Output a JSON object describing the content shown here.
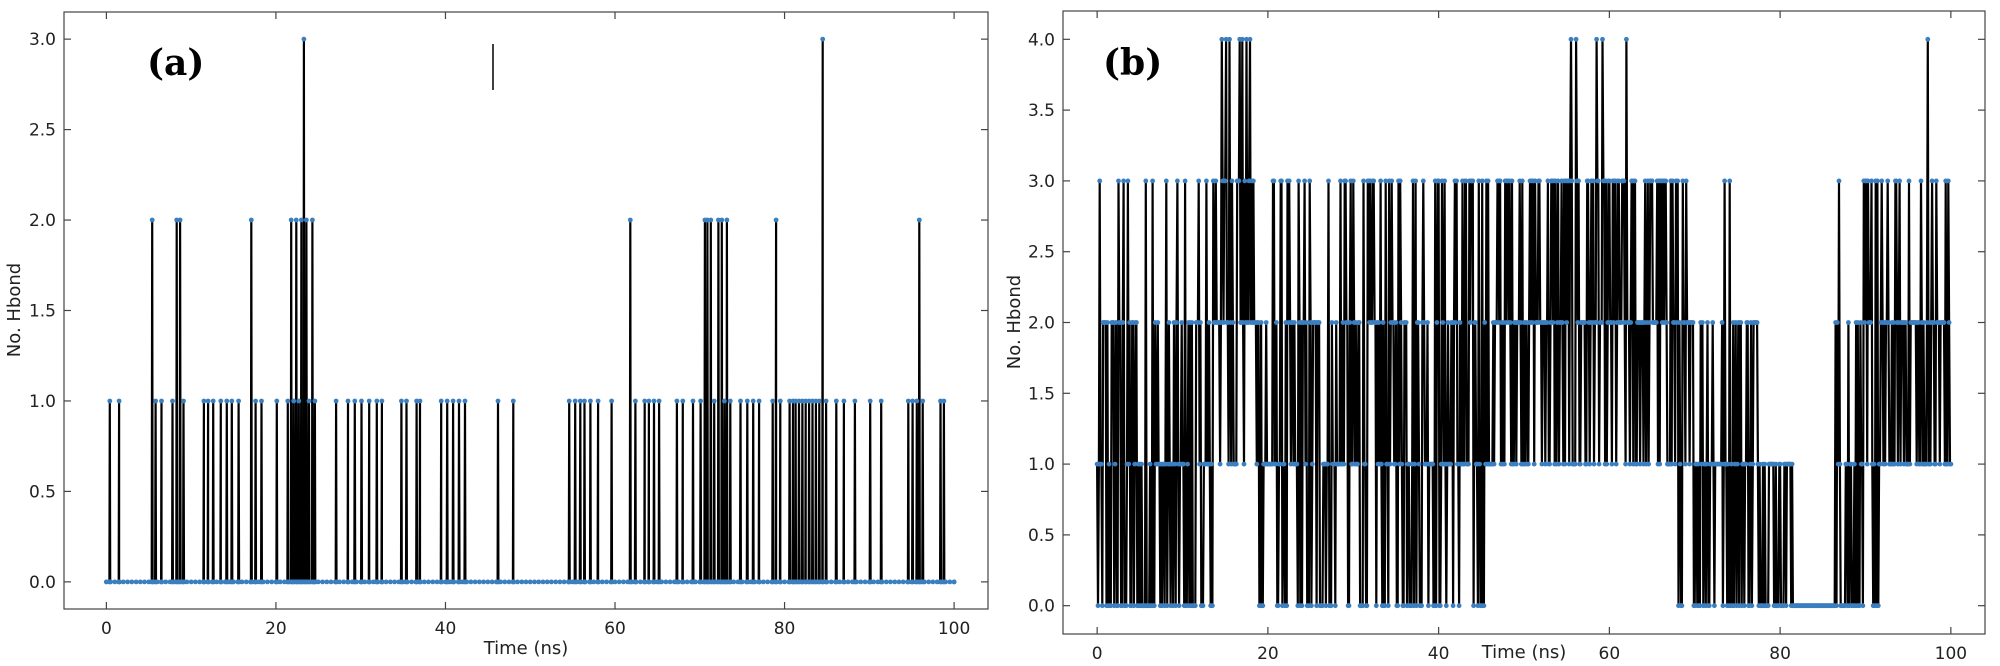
{
  "chart_data": [
    {
      "type": "line",
      "panel_label": "(a)",
      "xlabel": "Time (ns)",
      "ylabel": "No. Hbond",
      "xlim": [
        -5,
        104
      ],
      "ylim": [
        -0.15,
        3.15
      ],
      "xticks": [
        "0",
        "20",
        "40",
        "60",
        "80",
        "100"
      ],
      "yticks": [
        "0.0",
        "0.5",
        "1.0",
        "1.5",
        "2.0",
        "2.5",
        "3.0"
      ],
      "grid": false,
      "line_color": "#000000",
      "marker_color": "#3b7fc0",
      "events": [
        [
          0.4,
          1
        ],
        [
          1.5,
          1
        ],
        [
          5.4,
          2
        ],
        [
          5.8,
          1
        ],
        [
          6.5,
          1
        ],
        [
          7.8,
          1
        ],
        [
          8.3,
          2
        ],
        [
          8.7,
          2
        ],
        [
          9.1,
          1
        ],
        [
          11.5,
          1
        ],
        [
          12.0,
          1
        ],
        [
          12.6,
          1
        ],
        [
          13.5,
          1
        ],
        [
          14.2,
          1
        ],
        [
          14.8,
          1
        ],
        [
          15.6,
          1
        ],
        [
          17.1,
          2
        ],
        [
          17.6,
          1
        ],
        [
          18.3,
          1
        ],
        [
          20.1,
          1
        ],
        [
          21.4,
          1
        ],
        [
          21.8,
          2
        ],
        [
          22.1,
          1
        ],
        [
          22.4,
          2
        ],
        [
          22.7,
          1
        ],
        [
          23.0,
          2
        ],
        [
          23.3,
          3
        ],
        [
          23.6,
          2
        ],
        [
          23.9,
          1
        ],
        [
          24.3,
          2
        ],
        [
          24.6,
          1
        ],
        [
          27.1,
          1
        ],
        [
          28.5,
          1
        ],
        [
          29.3,
          1
        ],
        [
          30.1,
          1
        ],
        [
          31.0,
          1
        ],
        [
          31.9,
          1
        ],
        [
          32.5,
          1
        ],
        [
          34.8,
          1
        ],
        [
          35.4,
          1
        ],
        [
          36.6,
          1
        ],
        [
          37.0,
          1
        ],
        [
          39.5,
          1
        ],
        [
          40.2,
          1
        ],
        [
          40.9,
          1
        ],
        [
          41.6,
          1
        ],
        [
          42.3,
          1
        ],
        [
          46.2,
          1
        ],
        [
          48.0,
          1
        ],
        [
          54.6,
          1
        ],
        [
          55.3,
          1
        ],
        [
          55.9,
          1
        ],
        [
          56.4,
          1
        ],
        [
          57.1,
          1
        ],
        [
          58.0,
          1
        ],
        [
          59.6,
          1
        ],
        [
          61.8,
          2
        ],
        [
          62.4,
          1
        ],
        [
          63.5,
          1
        ],
        [
          64.0,
          1
        ],
        [
          64.6,
          1
        ],
        [
          65.2,
          1
        ],
        [
          67.3,
          1
        ],
        [
          68.0,
          1
        ],
        [
          69.2,
          1
        ],
        [
          70.1,
          1
        ],
        [
          70.6,
          2
        ],
        [
          70.9,
          2
        ],
        [
          71.3,
          2
        ],
        [
          71.7,
          1
        ],
        [
          72.2,
          2
        ],
        [
          72.6,
          2
        ],
        [
          72.9,
          1
        ],
        [
          73.2,
          2
        ],
        [
          73.6,
          1
        ],
        [
          74.8,
          1
        ],
        [
          75.6,
          1
        ],
        [
          76.3,
          1
        ],
        [
          77.0,
          1
        ],
        [
          78.6,
          1
        ],
        [
          79.0,
          2
        ],
        [
          79.5,
          1
        ],
        [
          80.6,
          1
        ],
        [
          81.0,
          1
        ],
        [
          81.3,
          1
        ],
        [
          81.7,
          1
        ],
        [
          82.1,
          1
        ],
        [
          82.5,
          1
        ],
        [
          82.9,
          1
        ],
        [
          83.3,
          1
        ],
        [
          83.7,
          1
        ],
        [
          84.1,
          1
        ],
        [
          84.5,
          3
        ],
        [
          84.9,
          1
        ],
        [
          86.1,
          1
        ],
        [
          87.0,
          1
        ],
        [
          88.3,
          1
        ],
        [
          90.1,
          1
        ],
        [
          91.4,
          1
        ],
        [
          94.6,
          1
        ],
        [
          95.1,
          1
        ],
        [
          95.6,
          1
        ],
        [
          95.9,
          2
        ],
        [
          96.3,
          1
        ],
        [
          98.4,
          1
        ],
        [
          98.8,
          1
        ]
      ]
    },
    {
      "type": "line",
      "panel_label": "(b)",
      "xlabel": "Time (ns)",
      "ylabel": "No. Hbond",
      "xlim": [
        -4,
        104
      ],
      "ylim": [
        -0.2,
        4.2
      ],
      "xticks": [
        "0",
        "20",
        "40",
        "60",
        "80",
        "100"
      ],
      "yticks": [
        "0.0",
        "0.5",
        "1.0",
        "1.5",
        "2.0",
        "2.5",
        "3.0",
        "3.5",
        "4.0"
      ],
      "grid": false,
      "line_color": "#000000",
      "marker_color": "#3b7fc0",
      "segments": [
        {
          "start": 0,
          "end": 13.5,
          "values": [
            0,
            1,
            2,
            3
          ],
          "weights": [
            0.45,
            0.25,
            0.22,
            0.08
          ]
        },
        {
          "start": 13.5,
          "end": 18.5,
          "values": [
            1,
            2,
            3,
            4
          ],
          "weights": [
            0.2,
            0.35,
            0.35,
            0.1
          ]
        },
        {
          "start": 18.5,
          "end": 31,
          "values": [
            0,
            1,
            2,
            3
          ],
          "weights": [
            0.3,
            0.35,
            0.25,
            0.1
          ]
        },
        {
          "start": 31,
          "end": 47,
          "values": [
            0,
            1,
            2,
            3
          ],
          "weights": [
            0.2,
            0.3,
            0.3,
            0.2
          ]
        },
        {
          "start": 47,
          "end": 68,
          "values": [
            1,
            2,
            3,
            4
          ],
          "weights": [
            0.3,
            0.4,
            0.28,
            0.02
          ]
        },
        {
          "start": 68,
          "end": 77.5,
          "values": [
            0,
            1,
            2,
            3
          ],
          "weights": [
            0.25,
            0.35,
            0.3,
            0.1
          ]
        },
        {
          "start": 77.5,
          "end": 81.5,
          "values": [
            0,
            1
          ],
          "weights": [
            0.4,
            0.6
          ]
        },
        {
          "start": 81.5,
          "end": 86,
          "values": [
            0
          ],
          "weights": [
            1
          ]
        },
        {
          "start": 86,
          "end": 92,
          "values": [
            0,
            1,
            2,
            3
          ],
          "weights": [
            0.4,
            0.3,
            0.2,
            0.1
          ]
        },
        {
          "start": 92,
          "end": 100,
          "values": [
            1,
            2,
            3
          ],
          "weights": [
            0.45,
            0.4,
            0.15
          ]
        }
      ],
      "spikes": [
        [
          15.1,
          4
        ],
        [
          15.5,
          4
        ],
        [
          16.7,
          4
        ],
        [
          56.1,
          4
        ],
        [
          97.3,
          4
        ],
        [
          2.5,
          3
        ],
        [
          3.1,
          3
        ],
        [
          6.5,
          3
        ],
        [
          12.8,
          3
        ],
        [
          28.5,
          3
        ],
        [
          29.0,
          3
        ],
        [
          90.7,
          3
        ],
        [
          91.2,
          3
        ]
      ],
      "step_ns": 0.1
    }
  ]
}
